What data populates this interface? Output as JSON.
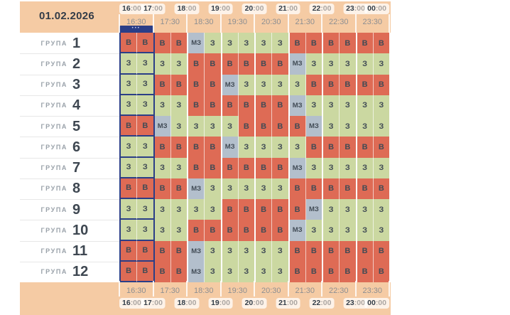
{
  "header": {
    "date": "01.02.2026",
    "selection_dots": "•••"
  },
  "timeline": {
    "hours": [
      {
        "hour": "16",
        "minutes": ":00"
      },
      {
        "hour": "17",
        "minutes": ":00"
      },
      {
        "hour": "18",
        "minutes": ":00"
      },
      {
        "hour": "19",
        "minutes": ":00"
      },
      {
        "hour": "20",
        "minutes": ":00"
      },
      {
        "hour": "21",
        "minutes": ":00"
      },
      {
        "hour": "22",
        "minutes": ":00"
      },
      {
        "hour": "23",
        "minutes": ":00"
      },
      {
        "hour": "00",
        "minutes": ":00"
      }
    ],
    "half_hours": [
      "16:30",
      "17:30",
      "18:30",
      "19:30",
      "20:30",
      "21:30",
      "22:30",
      "23:30"
    ]
  },
  "groups": {
    "label": "ГРУПА",
    "rows": [
      {
        "number": "1",
        "cells": [
          "В",
          "В",
          "В",
          "В",
          "МЗ",
          "З",
          "З",
          "З",
          "З",
          "З",
          "В",
          "В",
          "В",
          "В",
          "В",
          "В"
        ]
      },
      {
        "number": "2",
        "cells": [
          "З",
          "З",
          "З",
          "З",
          "В",
          "В",
          "В",
          "В",
          "В",
          "В",
          "МЗ",
          "З",
          "З",
          "З",
          "З",
          "З"
        ]
      },
      {
        "number": "3",
        "cells": [
          "З",
          "З",
          "В",
          "В",
          "В",
          "В",
          "МЗ",
          "З",
          "З",
          "З",
          "З",
          "В",
          "В",
          "В",
          "В",
          "В"
        ]
      },
      {
        "number": "4",
        "cells": [
          "З",
          "З",
          "З",
          "З",
          "В",
          "В",
          "В",
          "В",
          "В",
          "В",
          "МЗ",
          "З",
          "З",
          "З",
          "З",
          "З"
        ]
      },
      {
        "number": "5",
        "cells": [
          "В",
          "В",
          "МЗ",
          "З",
          "З",
          "З",
          "З",
          "В",
          "В",
          "В",
          "В",
          "МЗ",
          "З",
          "З",
          "З",
          "З"
        ]
      },
      {
        "number": "6",
        "cells": [
          "З",
          "З",
          "В",
          "В",
          "В",
          "В",
          "МЗ",
          "З",
          "З",
          "З",
          "З",
          "В",
          "В",
          "В",
          "В",
          "В"
        ]
      },
      {
        "number": "7",
        "cells": [
          "З",
          "З",
          "З",
          "З",
          "В",
          "В",
          "В",
          "В",
          "В",
          "В",
          "МЗ",
          "З",
          "З",
          "З",
          "З",
          "З"
        ]
      },
      {
        "number": "8",
        "cells": [
          "В",
          "В",
          "В",
          "В",
          "МЗ",
          "З",
          "З",
          "З",
          "З",
          "З",
          "В",
          "В",
          "В",
          "В",
          "В",
          "В"
        ]
      },
      {
        "number": "9",
        "cells": [
          "З",
          "З",
          "З",
          "З",
          "З",
          "З",
          "В",
          "В",
          "В",
          "В",
          "В",
          "МЗ",
          "З",
          "З",
          "З",
          "З"
        ]
      },
      {
        "number": "10",
        "cells": [
          "З",
          "З",
          "З",
          "З",
          "В",
          "В",
          "В",
          "В",
          "В",
          "В",
          "МЗ",
          "З",
          "З",
          "З",
          "З",
          "З"
        ]
      },
      {
        "number": "11",
        "cells": [
          "В",
          "В",
          "В",
          "В",
          "МЗ",
          "З",
          "З",
          "З",
          "З",
          "З",
          "В",
          "В",
          "В",
          "В",
          "В",
          "В"
        ]
      },
      {
        "number": "12",
        "cells": [
          "В",
          "В",
          "В",
          "В",
          "МЗ",
          "З",
          "З",
          "З",
          "З",
          "З",
          "В",
          "В",
          "В",
          "В",
          "В",
          "В"
        ]
      }
    ]
  },
  "selection": {
    "columns": [
      0,
      1
    ]
  },
  "colors": {
    "band": "#F5CBA4",
    "В": "#DE6B55",
    "З": "#CBD8A1",
    "МЗ": "#B3BFCC",
    "selection_navy": "#2B3E87",
    "cell_text": "#414B55"
  }
}
